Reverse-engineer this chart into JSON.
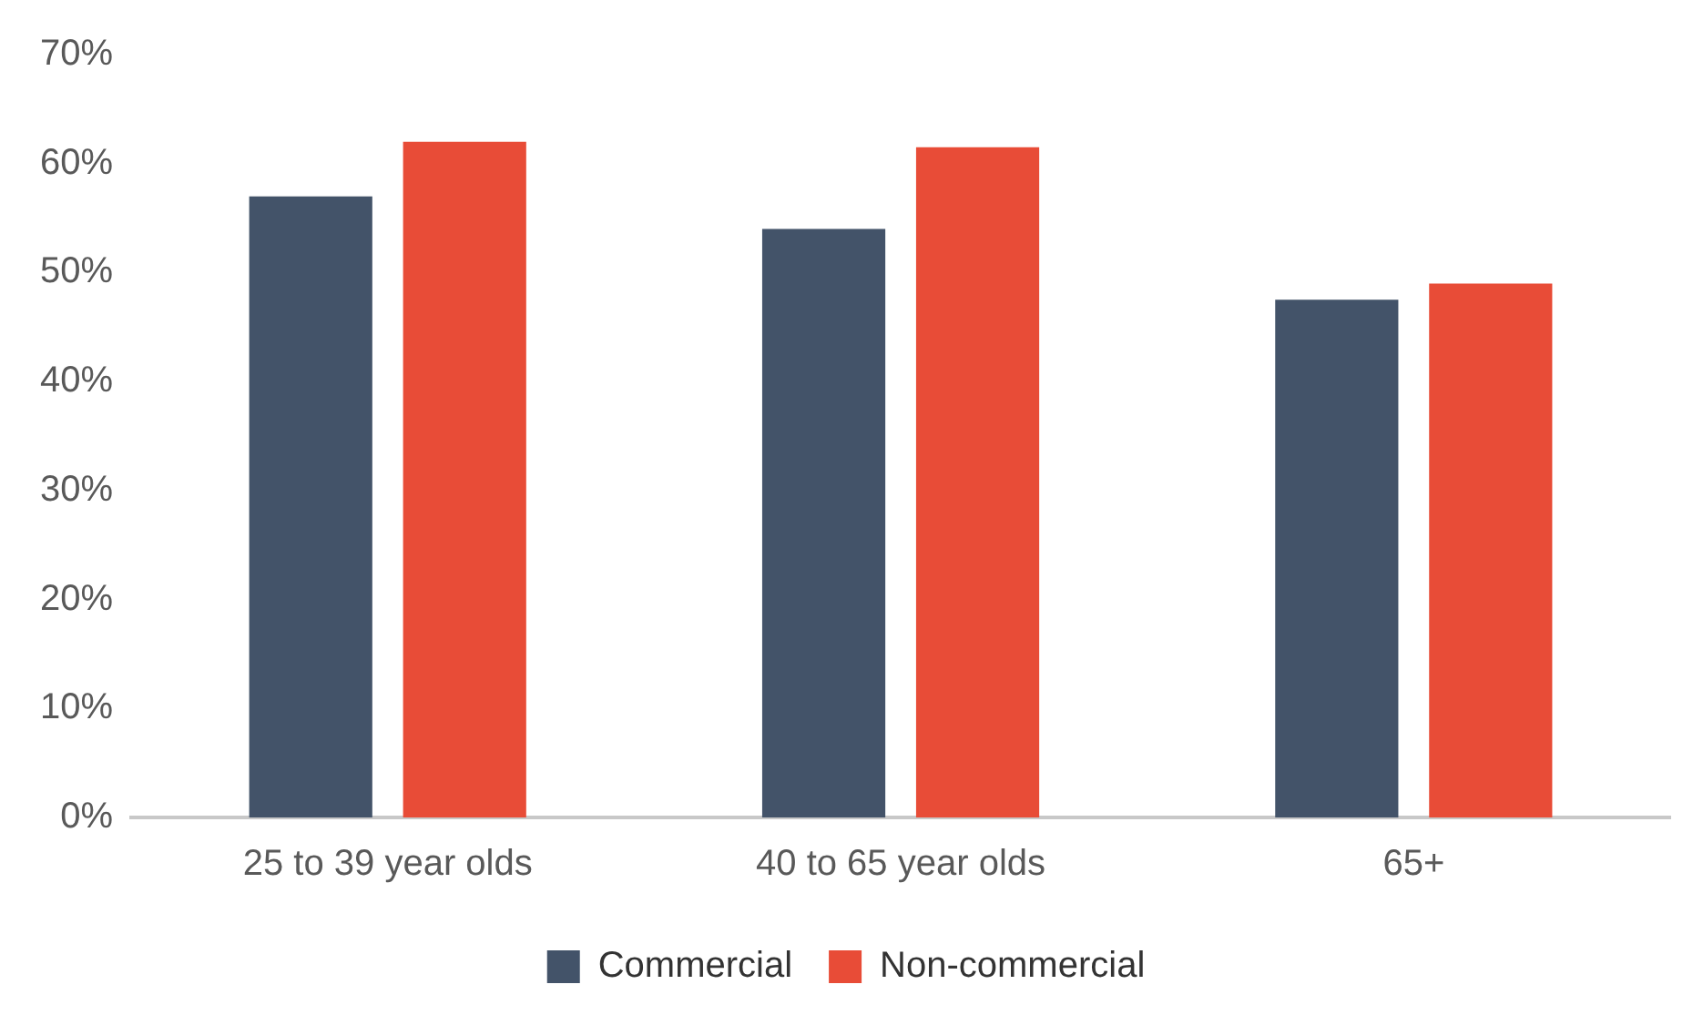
{
  "chart_data": {
    "type": "bar",
    "categories": [
      "25 to 39 year olds",
      "40 to 65 year olds",
      "65+"
    ],
    "series": [
      {
        "name": "Commercial",
        "color": "#435369",
        "values": [
          57,
          54,
          47.5
        ]
      },
      {
        "name": "Non-commercial",
        "color": "#e84c37",
        "values": [
          62,
          61.5,
          49
        ]
      }
    ],
    "ylim": [
      0,
      70
    ],
    "yticks": [
      {
        "value": 0,
        "label": "0%"
      },
      {
        "value": 10,
        "label": "10%"
      },
      {
        "value": 20,
        "label": "20%"
      },
      {
        "value": 30,
        "label": "30%"
      },
      {
        "value": 40,
        "label": "40%"
      },
      {
        "value": 50,
        "label": "50%"
      },
      {
        "value": 60,
        "label": "60%"
      },
      {
        "value": 70,
        "label": "70%"
      }
    ],
    "grid": false,
    "legend": "bottom"
  }
}
